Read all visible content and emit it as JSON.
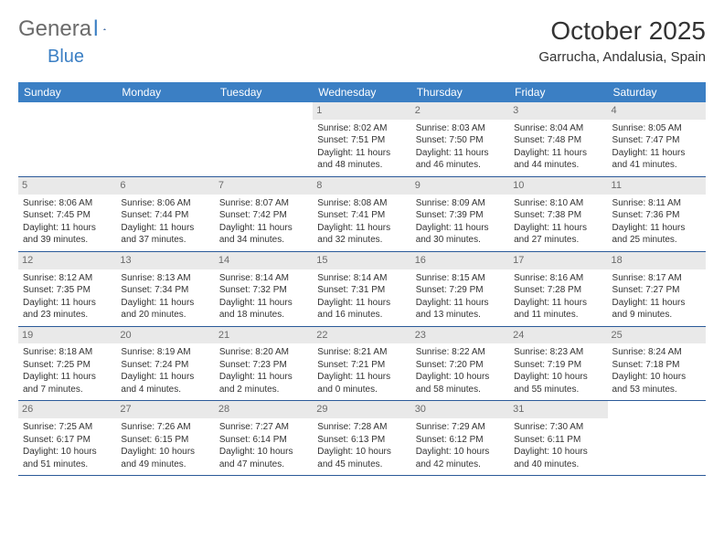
{
  "brand": {
    "general": "Genera",
    "l": "l",
    "blue": "Blue"
  },
  "title": "October 2025",
  "subtitle": "Garrucha, Andalusia, Spain",
  "colors": {
    "header_bg": "#3b7fc4",
    "logo_blue": "#3b7fc4",
    "logo_dark": "#2b5a99",
    "daynum_bg": "#e9e9e9",
    "text": "#333333",
    "border": "#2b5a99"
  },
  "weekdays": [
    "Sunday",
    "Monday",
    "Tuesday",
    "Wednesday",
    "Thursday",
    "Friday",
    "Saturday"
  ],
  "weeks": [
    [
      {
        "empty": true
      },
      {
        "empty": true
      },
      {
        "empty": true
      },
      {
        "n": "1",
        "sr": "Sunrise: 8:02 AM",
        "ss": "Sunset: 7:51 PM",
        "d1": "Daylight: 11 hours",
        "d2": "and 48 minutes."
      },
      {
        "n": "2",
        "sr": "Sunrise: 8:03 AM",
        "ss": "Sunset: 7:50 PM",
        "d1": "Daylight: 11 hours",
        "d2": "and 46 minutes."
      },
      {
        "n": "3",
        "sr": "Sunrise: 8:04 AM",
        "ss": "Sunset: 7:48 PM",
        "d1": "Daylight: 11 hours",
        "d2": "and 44 minutes."
      },
      {
        "n": "4",
        "sr": "Sunrise: 8:05 AM",
        "ss": "Sunset: 7:47 PM",
        "d1": "Daylight: 11 hours",
        "d2": "and 41 minutes."
      }
    ],
    [
      {
        "n": "5",
        "sr": "Sunrise: 8:06 AM",
        "ss": "Sunset: 7:45 PM",
        "d1": "Daylight: 11 hours",
        "d2": "and 39 minutes."
      },
      {
        "n": "6",
        "sr": "Sunrise: 8:06 AM",
        "ss": "Sunset: 7:44 PM",
        "d1": "Daylight: 11 hours",
        "d2": "and 37 minutes."
      },
      {
        "n": "7",
        "sr": "Sunrise: 8:07 AM",
        "ss": "Sunset: 7:42 PM",
        "d1": "Daylight: 11 hours",
        "d2": "and 34 minutes."
      },
      {
        "n": "8",
        "sr": "Sunrise: 8:08 AM",
        "ss": "Sunset: 7:41 PM",
        "d1": "Daylight: 11 hours",
        "d2": "and 32 minutes."
      },
      {
        "n": "9",
        "sr": "Sunrise: 8:09 AM",
        "ss": "Sunset: 7:39 PM",
        "d1": "Daylight: 11 hours",
        "d2": "and 30 minutes."
      },
      {
        "n": "10",
        "sr": "Sunrise: 8:10 AM",
        "ss": "Sunset: 7:38 PM",
        "d1": "Daylight: 11 hours",
        "d2": "and 27 minutes."
      },
      {
        "n": "11",
        "sr": "Sunrise: 8:11 AM",
        "ss": "Sunset: 7:36 PM",
        "d1": "Daylight: 11 hours",
        "d2": "and 25 minutes."
      }
    ],
    [
      {
        "n": "12",
        "sr": "Sunrise: 8:12 AM",
        "ss": "Sunset: 7:35 PM",
        "d1": "Daylight: 11 hours",
        "d2": "and 23 minutes."
      },
      {
        "n": "13",
        "sr": "Sunrise: 8:13 AM",
        "ss": "Sunset: 7:34 PM",
        "d1": "Daylight: 11 hours",
        "d2": "and 20 minutes."
      },
      {
        "n": "14",
        "sr": "Sunrise: 8:14 AM",
        "ss": "Sunset: 7:32 PM",
        "d1": "Daylight: 11 hours",
        "d2": "and 18 minutes."
      },
      {
        "n": "15",
        "sr": "Sunrise: 8:14 AM",
        "ss": "Sunset: 7:31 PM",
        "d1": "Daylight: 11 hours",
        "d2": "and 16 minutes."
      },
      {
        "n": "16",
        "sr": "Sunrise: 8:15 AM",
        "ss": "Sunset: 7:29 PM",
        "d1": "Daylight: 11 hours",
        "d2": "and 13 minutes."
      },
      {
        "n": "17",
        "sr": "Sunrise: 8:16 AM",
        "ss": "Sunset: 7:28 PM",
        "d1": "Daylight: 11 hours",
        "d2": "and 11 minutes."
      },
      {
        "n": "18",
        "sr": "Sunrise: 8:17 AM",
        "ss": "Sunset: 7:27 PM",
        "d1": "Daylight: 11 hours",
        "d2": "and 9 minutes."
      }
    ],
    [
      {
        "n": "19",
        "sr": "Sunrise: 8:18 AM",
        "ss": "Sunset: 7:25 PM",
        "d1": "Daylight: 11 hours",
        "d2": "and 7 minutes."
      },
      {
        "n": "20",
        "sr": "Sunrise: 8:19 AM",
        "ss": "Sunset: 7:24 PM",
        "d1": "Daylight: 11 hours",
        "d2": "and 4 minutes."
      },
      {
        "n": "21",
        "sr": "Sunrise: 8:20 AM",
        "ss": "Sunset: 7:23 PM",
        "d1": "Daylight: 11 hours",
        "d2": "and 2 minutes."
      },
      {
        "n": "22",
        "sr": "Sunrise: 8:21 AM",
        "ss": "Sunset: 7:21 PM",
        "d1": "Daylight: 11 hours",
        "d2": "and 0 minutes."
      },
      {
        "n": "23",
        "sr": "Sunrise: 8:22 AM",
        "ss": "Sunset: 7:20 PM",
        "d1": "Daylight: 10 hours",
        "d2": "and 58 minutes."
      },
      {
        "n": "24",
        "sr": "Sunrise: 8:23 AM",
        "ss": "Sunset: 7:19 PM",
        "d1": "Daylight: 10 hours",
        "d2": "and 55 minutes."
      },
      {
        "n": "25",
        "sr": "Sunrise: 8:24 AM",
        "ss": "Sunset: 7:18 PM",
        "d1": "Daylight: 10 hours",
        "d2": "and 53 minutes."
      }
    ],
    [
      {
        "n": "26",
        "sr": "Sunrise: 7:25 AM",
        "ss": "Sunset: 6:17 PM",
        "d1": "Daylight: 10 hours",
        "d2": "and 51 minutes."
      },
      {
        "n": "27",
        "sr": "Sunrise: 7:26 AM",
        "ss": "Sunset: 6:15 PM",
        "d1": "Daylight: 10 hours",
        "d2": "and 49 minutes."
      },
      {
        "n": "28",
        "sr": "Sunrise: 7:27 AM",
        "ss": "Sunset: 6:14 PM",
        "d1": "Daylight: 10 hours",
        "d2": "and 47 minutes."
      },
      {
        "n": "29",
        "sr": "Sunrise: 7:28 AM",
        "ss": "Sunset: 6:13 PM",
        "d1": "Daylight: 10 hours",
        "d2": "and 45 minutes."
      },
      {
        "n": "30",
        "sr": "Sunrise: 7:29 AM",
        "ss": "Sunset: 6:12 PM",
        "d1": "Daylight: 10 hours",
        "d2": "and 42 minutes."
      },
      {
        "n": "31",
        "sr": "Sunrise: 7:30 AM",
        "ss": "Sunset: 6:11 PM",
        "d1": "Daylight: 10 hours",
        "d2": "and 40 minutes."
      },
      {
        "empty": true
      }
    ]
  ]
}
